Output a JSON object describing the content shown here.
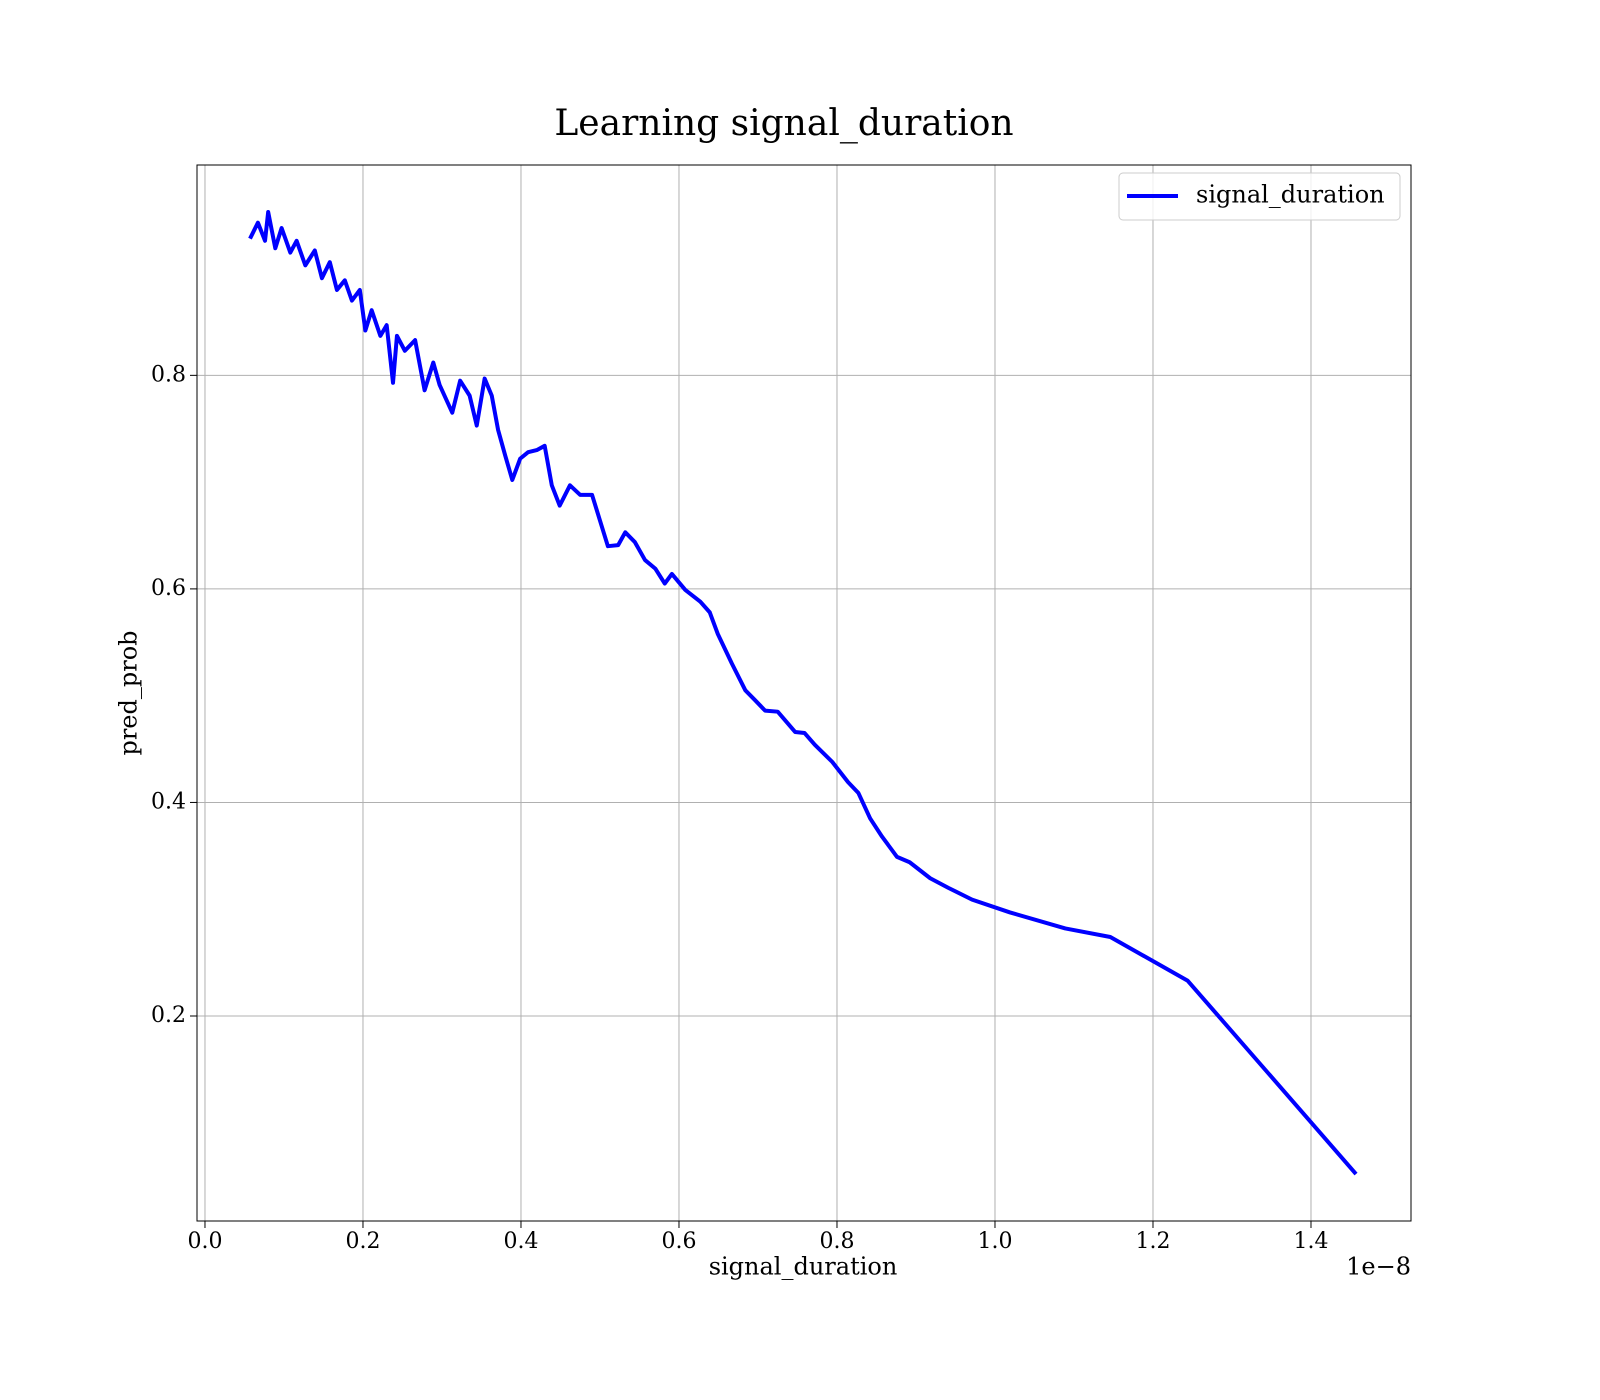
{
  "chart_data": {
    "type": "line",
    "title": "Learning signal_duration",
    "x_label": "signal_duration",
    "y_label": "pred_prob",
    "x_offset_label": "1e−8",
    "legend": "upper right",
    "grid": true,
    "xlim": [
      -0.0101,
      1.5266
    ],
    "ylim": [
      0.008,
      0.997
    ],
    "xticks": [
      {
        "value": 0,
        "label": "0.0"
      },
      0.2,
      0.4,
      0.6,
      0.8,
      {
        "value": 1,
        "label": "1.0"
      },
      1.2,
      1.4
    ],
    "yticks": [
      0.2,
      0.4,
      0.6,
      0.8
    ],
    "series": [
      {
        "name": "signal_duration",
        "color": "#0000ff",
        "x": [
          0.057,
          0.067,
          0.076,
          0.08,
          0.089,
          0.097,
          0.108,
          0.116,
          0.127,
          0.139,
          0.148,
          0.158,
          0.167,
          0.177,
          0.186,
          0.196,
          0.203,
          0.211,
          0.222,
          0.23,
          0.238,
          0.243,
          0.253,
          0.266,
          0.278,
          0.289,
          0.297,
          0.313,
          0.323,
          0.335,
          0.344,
          0.354,
          0.363,
          0.371,
          0.38,
          0.389,
          0.399,
          0.409,
          0.42,
          0.43,
          0.439,
          0.449,
          0.462,
          0.475,
          0.49,
          0.5,
          0.51,
          0.523,
          0.532,
          0.544,
          0.557,
          0.57,
          0.582,
          0.591,
          0.608,
          0.627,
          0.639,
          0.649,
          0.667,
          0.684,
          0.696,
          0.709,
          0.725,
          0.747,
          0.759,
          0.772,
          0.794,
          0.814,
          0.827,
          0.842,
          0.857,
          0.876,
          0.892,
          0.918,
          0.941,
          0.971,
          1.019,
          1.089,
          1.146,
          1.244,
          1.457
        ],
        "values": [
          0.928,
          0.943,
          0.926,
          0.953,
          0.919,
          0.938,
          0.915,
          0.926,
          0.903,
          0.917,
          0.891,
          0.906,
          0.88,
          0.889,
          0.87,
          0.88,
          0.842,
          0.861,
          0.837,
          0.847,
          0.793,
          0.837,
          0.823,
          0.833,
          0.786,
          0.812,
          0.791,
          0.765,
          0.795,
          0.781,
          0.753,
          0.797,
          0.781,
          0.749,
          0.725,
          0.702,
          0.722,
          0.728,
          0.73,
          0.734,
          0.697,
          0.678,
          0.697,
          0.688,
          0.688,
          0.664,
          0.64,
          0.641,
          0.653,
          0.644,
          0.627,
          0.619,
          0.605,
          0.614,
          0.599,
          0.588,
          0.578,
          0.558,
          0.53,
          0.505,
          0.496,
          0.486,
          0.485,
          0.466,
          0.465,
          0.454,
          0.438,
          0.419,
          0.409,
          0.385,
          0.368,
          0.349,
          0.344,
          0.329,
          0.32,
          0.309,
          0.297,
          0.282,
          0.274,
          0.233,
          0.052
        ]
      }
    ]
  }
}
